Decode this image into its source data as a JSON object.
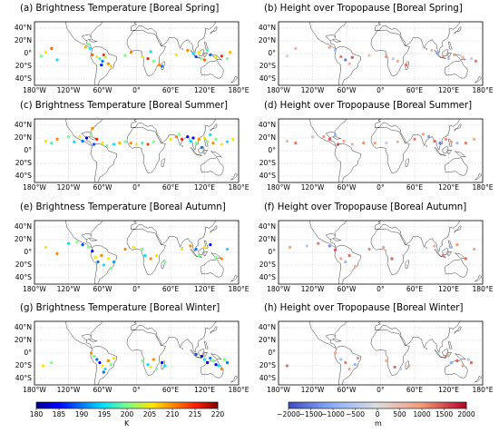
{
  "panels": [
    {
      "id": "a",
      "title": "(a) Brightness Temperature [Boreal Spring]",
      "variable": "brightness_temperature",
      "season": "Boreal Spring"
    },
    {
      "id": "b",
      "title": "(b) Height over Tropopause [Boreal Spring]",
      "variable": "height_over_tropopause",
      "season": "Boreal Spring"
    },
    {
      "id": "c",
      "title": "(c) Brightness Temperature [Boreal Summer]",
      "variable": "brightness_temperature",
      "season": "Boreal Summer"
    },
    {
      "id": "d",
      "title": "(d) Height over Tropopause [Boreal Summer]",
      "variable": "height_over_tropopause",
      "season": "Boreal Summer"
    },
    {
      "id": "e",
      "title": "(e) Brightness Temperature [Boreal Autumn]",
      "variable": "brightness_temperature",
      "season": "Boreal Autumn"
    },
    {
      "id": "f",
      "title": "(f) Height over Tropopause [Boreal Autumn]",
      "variable": "height_over_tropopause",
      "season": "Boreal Autumn"
    },
    {
      "id": "g",
      "title": "(g) Brightness Temperature [Boreal Winter]",
      "variable": "brightness_temperature",
      "season": "Boreal Winter"
    },
    {
      "id": "h",
      "title": "(h) Height over Tropopause [Boreal Winter]",
      "variable": "height_over_tropopause",
      "season": "Boreal Winter"
    }
  ],
  "lat_ticks": [
    "40°N",
    "20°N",
    "0°",
    "20°S",
    "40°S"
  ],
  "lon_ticks": [
    "180°W",
    "120°W",
    "60°W",
    "0°",
    "60°E",
    "120°E",
    "180°E"
  ],
  "chart_data": {
    "type": "scatter",
    "map_extent": {
      "lon": [
        -180,
        180
      ],
      "lat": [
        -50,
        50
      ]
    },
    "colorbars": [
      {
        "variable": "brightness_temperature",
        "label": "K",
        "range": [
          180,
          220
        ],
        "ticks": [
          "180",
          "185",
          "190",
          "195",
          "200",
          "205",
          "210",
          "215",
          "220"
        ],
        "colormap": "jet"
      },
      {
        "variable": "height_over_tropopause",
        "label": "m",
        "range": [
          -2000,
          2000
        ],
        "ticks": [
          "−2000",
          "−1500",
          "−1000",
          "−500",
          "0",
          "500",
          "1000",
          "1500",
          "2000"
        ],
        "colormap": "coolwarm"
      }
    ],
    "series": [
      {
        "panel": "a",
        "points": [
          [
            -168,
            -4,
            200
          ],
          [
            -160,
            2,
            205
          ],
          [
            -150,
            8,
            212
          ],
          [
            -140,
            -10,
            195
          ],
          [
            -90,
            10,
            208
          ],
          [
            -85,
            15,
            200
          ],
          [
            -82,
            8,
            196
          ],
          [
            -78,
            -2,
            212
          ],
          [
            -70,
            -5,
            205
          ],
          [
            -65,
            -8,
            198
          ],
          [
            -60,
            -12,
            190
          ],
          [
            -55,
            -6,
            203
          ],
          [
            -50,
            -16,
            210
          ],
          [
            -62,
            -18,
            186
          ],
          [
            -45,
            -20,
            207
          ],
          [
            -58,
            -2,
            214
          ],
          [
            -20,
            -3,
            200
          ],
          [
            -10,
            2,
            210
          ],
          [
            10,
            -5,
            205
          ],
          [
            20,
            -8,
            215
          ],
          [
            30,
            -12,
            200
          ],
          [
            25,
            3,
            195
          ],
          [
            40,
            -18,
            210
          ],
          [
            45,
            -20,
            190
          ],
          [
            70,
            -2,
            205
          ],
          [
            90,
            5,
            210
          ],
          [
            100,
            0,
            195
          ],
          [
            105,
            -5,
            188
          ],
          [
            110,
            2,
            205
          ],
          [
            115,
            -8,
            200
          ],
          [
            120,
            -10,
            212
          ],
          [
            125,
            5,
            198
          ],
          [
            130,
            -2,
            190
          ],
          [
            140,
            -6,
            205
          ],
          [
            150,
            -4,
            215
          ],
          [
            160,
            -8,
            200
          ],
          [
            165,
            2,
            208
          ]
        ]
      },
      {
        "panel": "b",
        "points": [
          [
            -165,
            -4,
            -300
          ],
          [
            -150,
            8,
            600
          ],
          [
            -90,
            10,
            900
          ],
          [
            -80,
            5,
            -800
          ],
          [
            -70,
            -5,
            1200
          ],
          [
            -62,
            -10,
            -1500
          ],
          [
            -55,
            -16,
            700
          ],
          [
            -50,
            -6,
            1500
          ],
          [
            -20,
            -3,
            400
          ],
          [
            10,
            -5,
            1100
          ],
          [
            22,
            -8,
            -400
          ],
          [
            30,
            -12,
            800
          ],
          [
            45,
            -18,
            1300
          ],
          [
            90,
            5,
            500
          ],
          [
            100,
            0,
            -1200
          ],
          [
            110,
            -4,
            900
          ],
          [
            120,
            -8,
            -600
          ],
          [
            130,
            -2,
            1000
          ],
          [
            145,
            -6,
            700
          ],
          [
            160,
            -8,
            -300
          ],
          [
            168,
            -12,
            1200
          ]
        ]
      },
      {
        "panel": "c",
        "points": [
          [
            -160,
            15,
            205
          ],
          [
            -150,
            12,
            198
          ],
          [
            -140,
            18,
            210
          ],
          [
            -120,
            22,
            200
          ],
          [
            -110,
            14,
            195
          ],
          [
            -100,
            22,
            205
          ],
          [
            -95,
            15,
            190
          ],
          [
            -88,
            20,
            183
          ],
          [
            -80,
            25,
            200
          ],
          [
            -78,
            35,
            210
          ],
          [
            -75,
            10,
            188
          ],
          [
            -70,
            18,
            215
          ],
          [
            -60,
            12,
            205
          ],
          [
            -52,
            8,
            200
          ],
          [
            -40,
            10,
            195
          ],
          [
            -30,
            12,
            208
          ],
          [
            -20,
            14,
            200
          ],
          [
            -10,
            12,
            210
          ],
          [
            0,
            10,
            205
          ],
          [
            10,
            12,
            198
          ],
          [
            20,
            10,
            213
          ],
          [
            30,
            14,
            200
          ],
          [
            60,
            18,
            205
          ],
          [
            70,
            22,
            210
          ],
          [
            75,
            26,
            200
          ],
          [
            80,
            18,
            215
          ],
          [
            90,
            22,
            185
          ],
          [
            95,
            15,
            195
          ],
          [
            100,
            20,
            183
          ],
          [
            105,
            12,
            200
          ],
          [
            110,
            18,
            210
          ],
          [
            115,
            5,
            190
          ],
          [
            120,
            20,
            205
          ],
          [
            125,
            14,
            200
          ],
          [
            130,
            25,
            195
          ],
          [
            135,
            12,
            210
          ],
          [
            140,
            18,
            200
          ],
          [
            150,
            10,
            205
          ],
          [
            160,
            14,
            195
          ],
          [
            170,
            18,
            205
          ]
        ]
      },
      {
        "panel": "d",
        "points": [
          [
            -165,
            15,
            600
          ],
          [
            -150,
            12,
            1200
          ],
          [
            -120,
            22,
            -500
          ],
          [
            -100,
            22,
            1000
          ],
          [
            -90,
            18,
            1400
          ],
          [
            -80,
            25,
            -900
          ],
          [
            -75,
            10,
            1500
          ],
          [
            -65,
            15,
            800
          ],
          [
            -50,
            10,
            600
          ],
          [
            -30,
            12,
            1100
          ],
          [
            -10,
            12,
            900
          ],
          [
            10,
            12,
            -400
          ],
          [
            30,
            14,
            700
          ],
          [
            60,
            18,
            1200
          ],
          [
            75,
            26,
            900
          ],
          [
            85,
            22,
            -1200
          ],
          [
            95,
            15,
            1300
          ],
          [
            105,
            12,
            -1500
          ],
          [
            115,
            18,
            1100
          ],
          [
            125,
            14,
            900
          ],
          [
            135,
            12,
            -800
          ],
          [
            150,
            12,
            1200
          ],
          [
            165,
            18,
            700
          ]
        ]
      },
      {
        "panel": "e",
        "points": [
          [
            -160,
            8,
            205
          ],
          [
            -140,
            -2,
            210
          ],
          [
            -120,
            14,
            195
          ],
          [
            -105,
            16,
            200
          ],
          [
            -95,
            12,
            188
          ],
          [
            -85,
            8,
            200
          ],
          [
            -78,
            2,
            185
          ],
          [
            -72,
            -8,
            205
          ],
          [
            -68,
            -15,
            190
          ],
          [
            -62,
            -5,
            210
          ],
          [
            -58,
            -20,
            195
          ],
          [
            -50,
            -10,
            205
          ],
          [
            -45,
            -25,
            200
          ],
          [
            -40,
            -15,
            192
          ],
          [
            -20,
            5,
            210
          ],
          [
            -5,
            8,
            205
          ],
          [
            10,
            5,
            200
          ],
          [
            15,
            -5,
            195
          ],
          [
            25,
            -10,
            210
          ],
          [
            35,
            -5,
            205
          ],
          [
            50,
            -15,
            200
          ],
          [
            80,
            5,
            205
          ],
          [
            95,
            10,
            210
          ],
          [
            105,
            5,
            190
          ],
          [
            110,
            -5,
            200
          ],
          [
            120,
            8,
            205
          ],
          [
            130,
            12,
            185
          ],
          [
            140,
            -8,
            200
          ],
          [
            150,
            -10,
            210
          ],
          [
            160,
            5,
            195
          ]
        ]
      },
      {
        "panel": "f",
        "points": [
          [
            -160,
            8,
            900
          ],
          [
            -130,
            10,
            -500
          ],
          [
            -110,
            14,
            1200
          ],
          [
            -90,
            10,
            -1300
          ],
          [
            -80,
            4,
            1500
          ],
          [
            -70,
            -10,
            800
          ],
          [
            -62,
            -15,
            -900
          ],
          [
            -55,
            -5,
            1300
          ],
          [
            -45,
            -22,
            600
          ],
          [
            -20,
            5,
            1100
          ],
          [
            5,
            8,
            900
          ],
          [
            20,
            -10,
            1400
          ],
          [
            40,
            -5,
            -400
          ],
          [
            95,
            10,
            700
          ],
          [
            110,
            -5,
            1200
          ],
          [
            125,
            8,
            -800
          ],
          [
            135,
            12,
            1000
          ],
          [
            150,
            -10,
            1300
          ],
          [
            165,
            5,
            800
          ]
        ]
      },
      {
        "panel": "g",
        "points": [
          [
            -165,
            -20,
            205
          ],
          [
            -150,
            -15,
            200
          ],
          [
            -80,
            0,
            210
          ],
          [
            -75,
            -5,
            200
          ],
          [
            -70,
            -10,
            190
          ],
          [
            -65,
            -15,
            185
          ],
          [
            -60,
            -20,
            205
          ],
          [
            -55,
            -25,
            195
          ],
          [
            -50,
            -12,
            210
          ],
          [
            -45,
            -18,
            200
          ],
          [
            -40,
            -8,
            205
          ],
          [
            -58,
            -30,
            190
          ],
          [
            10,
            -12,
            200
          ],
          [
            20,
            -18,
            195
          ],
          [
            25,
            -22,
            205
          ],
          [
            30,
            -10,
            210
          ],
          [
            35,
            -25,
            200
          ],
          [
            45,
            -15,
            185
          ],
          [
            50,
            -20,
            195
          ],
          [
            105,
            -2,
            188
          ],
          [
            115,
            -5,
            185
          ],
          [
            120,
            -10,
            195
          ],
          [
            125,
            -15,
            183
          ],
          [
            130,
            -8,
            190
          ],
          [
            135,
            -12,
            200
          ],
          [
            140,
            -18,
            185
          ],
          [
            145,
            -20,
            195
          ],
          [
            150,
            -25,
            210
          ],
          [
            155,
            -10,
            200
          ],
          [
            160,
            -15,
            190
          ]
        ]
      },
      {
        "panel": "h",
        "points": [
          [
            -165,
            -20,
            1300
          ],
          [
            -80,
            0,
            900
          ],
          [
            -70,
            -10,
            -700
          ],
          [
            -62,
            -15,
            1200
          ],
          [
            -55,
            -25,
            800
          ],
          [
            -45,
            -18,
            -900
          ],
          [
            -40,
            -8,
            1100
          ],
          [
            10,
            -12,
            700
          ],
          [
            25,
            -22,
            1300
          ],
          [
            35,
            -25,
            -500
          ],
          [
            50,
            -20,
            900
          ],
          [
            115,
            -5,
            1200
          ],
          [
            125,
            -15,
            -1100
          ],
          [
            135,
            -12,
            1400
          ],
          [
            145,
            -20,
            900
          ],
          [
            155,
            -10,
            -600
          ],
          [
            160,
            -15,
            1300
          ]
        ]
      }
    ]
  }
}
